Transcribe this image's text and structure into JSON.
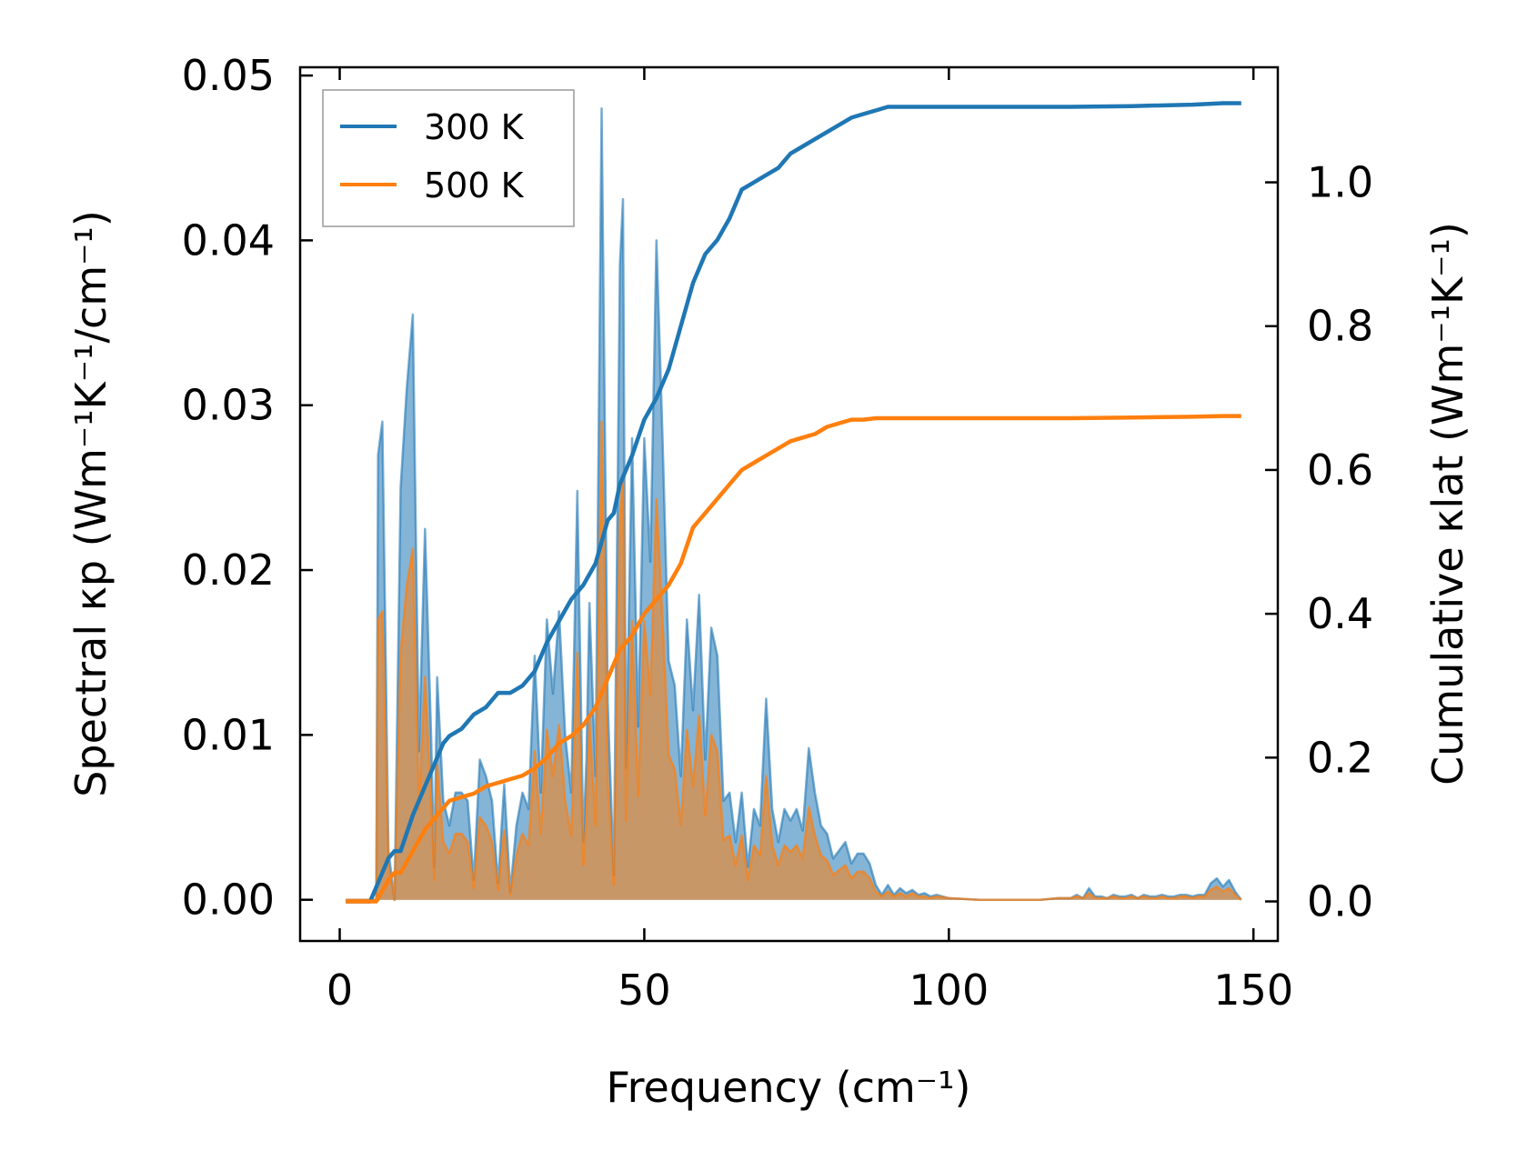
{
  "chart_data": {
    "type": "line",
    "xlabel": "Frequency (cm⁻¹)",
    "ylabel_left": "Spectral κp (Wm⁻¹K⁻¹/cm⁻¹)",
    "ylabel_right": "Cumulative κlat (Wm⁻¹K⁻¹)",
    "xlim": [
      -6.5,
      154
    ],
    "ylim_left": [
      -0.0025,
      0.0505
    ],
    "ylim_right": [
      -0.055,
      1.16
    ],
    "x_ticks": [
      0,
      50,
      100,
      150
    ],
    "x_tick_labels": [
      "0",
      "50",
      "100",
      "150"
    ],
    "y_left_ticks": [
      0,
      0.01,
      0.02,
      0.03,
      0.04,
      0.05
    ],
    "y_left_tick_labels": [
      "0.00",
      "0.01",
      "0.02",
      "0.03",
      "0.04",
      "0.05"
    ],
    "y_right_ticks": [
      0,
      0.2,
      0.4,
      0.6,
      0.8,
      1.0
    ],
    "y_right_tick_labels": [
      "0.0",
      "0.2",
      "0.4",
      "0.6",
      "0.8",
      "1.0"
    ],
    "legend": {
      "position": "top-left",
      "entries": [
        "300 K",
        "500 K"
      ]
    },
    "colors": {
      "300 K": "#1f77b4",
      "500 K": "#ff7f0e"
    },
    "spectral_x": [
      1,
      3,
      5,
      6,
      6.3,
      7,
      8,
      9,
      10,
      11,
      12,
      13,
      14,
      15,
      15.5,
      16,
      17,
      18,
      19,
      20,
      21,
      22,
      23,
      24,
      25,
      26,
      27,
      28,
      29,
      30,
      31,
      32,
      33,
      34,
      35,
      36,
      37,
      38,
      39,
      40,
      40.5,
      41,
      42,
      43,
      44,
      45,
      46,
      46.5,
      47,
      48,
      49,
      50,
      51,
      52,
      53,
      54,
      55,
      56,
      57,
      58,
      59,
      60,
      61,
      62,
      63,
      64,
      65,
      66,
      67,
      68,
      69,
      70,
      71,
      72,
      73,
      74,
      75,
      76,
      77,
      78,
      79,
      80,
      81,
      82,
      83,
      84,
      85,
      86,
      87,
      88,
      89,
      90,
      91,
      92,
      93,
      94,
      95,
      96,
      97,
      98,
      100,
      105,
      110,
      115,
      118,
      120,
      121,
      122,
      123,
      124,
      125,
      126,
      127,
      128,
      129,
      130,
      131,
      132,
      133,
      134,
      135,
      136,
      137,
      138,
      139,
      140,
      141,
      142,
      143,
      144,
      145,
      146,
      147,
      148
    ],
    "spectral_300K": [
      0,
      0,
      0,
      0,
      0.027,
      0.029,
      0.003,
      0,
      0.025,
      0.031,
      0.0355,
      0.009,
      0.0225,
      0.01,
      0.002,
      0.0135,
      0.006,
      0.0045,
      0.0065,
      0.0065,
      0.006,
      0.0012,
      0.0085,
      0.0075,
      0.006,
      0.001,
      0.007,
      0.0005,
      0.0045,
      0.0065,
      0.0055,
      0.0148,
      0.0065,
      0.017,
      0.0125,
      0.0175,
      0.01,
      0.0065,
      0.0248,
      0.0035,
      0.0085,
      0.018,
      0.0075,
      0.048,
      0.012,
      0.0015,
      0.0385,
      0.0425,
      0.008,
      0.028,
      0.0105,
      0.028,
      0.0205,
      0.04,
      0.028,
      0.0145,
      0.013,
      0.0075,
      0.017,
      0.0115,
      0.0185,
      0.0085,
      0.0165,
      0.0148,
      0.006,
      0.0065,
      0.0035,
      0.0065,
      0.002,
      0.0055,
      0.0045,
      0.0122,
      0.0055,
      0.0035,
      0.0055,
      0.0048,
      0.0055,
      0.0042,
      0.0092,
      0.0065,
      0.0045,
      0.004,
      0.0025,
      0.003,
      0.0035,
      0.0022,
      0.0028,
      0.0028,
      0.0022,
      0.0009,
      0.0003,
      0.0009,
      0.0003,
      0.0007,
      0.0004,
      0.0006,
      0.0003,
      0.0004,
      0.0002,
      0.0003,
      0.0001,
      0,
      0,
      0,
      0.0001,
      0.0001,
      0.0003,
      0.0001,
      0.0007,
      0.0002,
      0.0002,
      0.0001,
      0.0003,
      0.0002,
      0.0002,
      0.0003,
      0.0001,
      0.0003,
      0.0002,
      0.0002,
      0.0003,
      0.0002,
      0.0002,
      0.0003,
      0.0003,
      0.0002,
      0.0003,
      0.0003,
      0.001,
      0.0013,
      0.0008,
      0.0012,
      0.0005,
      0
    ],
    "spectral_500K": [
      0,
      0,
      0,
      0,
      0.017,
      0.0175,
      0.002,
      0,
      0.015,
      0.019,
      0.0213,
      0.0055,
      0.0135,
      0.006,
      0.0012,
      0.0082,
      0.0035,
      0.0028,
      0.004,
      0.004,
      0.0035,
      0.0007,
      0.005,
      0.0045,
      0.0035,
      0.0006,
      0.0042,
      0.0003,
      0.0027,
      0.004,
      0.0033,
      0.009,
      0.004,
      0.0103,
      0.0075,
      0.0106,
      0.006,
      0.0039,
      0.015,
      0.0021,
      0.0051,
      0.0109,
      0.0045,
      0.029,
      0.0072,
      0.0009,
      0.0232,
      0.0257,
      0.0048,
      0.0169,
      0.0063,
      0.0169,
      0.0124,
      0.0243,
      0.0169,
      0.0088,
      0.0079,
      0.0045,
      0.0103,
      0.0069,
      0.0112,
      0.0051,
      0.01,
      0.009,
      0.0036,
      0.0039,
      0.0021,
      0.0039,
      0.0012,
      0.0033,
      0.0027,
      0.0075,
      0.0033,
      0.0021,
      0.0033,
      0.0029,
      0.0033,
      0.0025,
      0.0056,
      0.0039,
      0.0027,
      0.0024,
      0.0015,
      0.0018,
      0.0021,
      0.0013,
      0.0017,
      0.0017,
      0.0013,
      0.0005,
      0.0002,
      0.0005,
      0.0002,
      0.0004,
      0.0002,
      0.0004,
      0.0002,
      0.0002,
      0.0001,
      0.0002,
      0.0001,
      0,
      0,
      0,
      0.0001,
      0.0001,
      0.0002,
      0.0001,
      0.0004,
      0.0001,
      0.0001,
      0.0001,
      0.0002,
      0.0001,
      0.0001,
      0.0002,
      0.0001,
      0.0002,
      0.0001,
      0.0001,
      0.0002,
      0.0001,
      0.0001,
      0.0002,
      0.0002,
      0.0001,
      0.0002,
      0.0002,
      0.0006,
      0.0008,
      0.0005,
      0.0007,
      0.0003,
      0
    ],
    "cumulative_x": [
      1,
      5,
      6,
      8,
      9,
      10,
      12,
      14,
      15,
      16,
      17,
      18,
      20,
      22,
      24,
      26,
      28,
      30,
      32,
      34,
      36,
      38,
      40,
      42,
      44,
      45,
      46,
      48,
      50,
      52,
      54,
      56,
      58,
      60,
      62,
      64,
      66,
      68,
      70,
      72,
      74,
      76,
      78,
      80,
      82,
      84,
      86,
      88,
      90,
      95,
      100,
      110,
      120,
      130,
      140,
      145,
      148
    ],
    "cumulative_300K": [
      0,
      0,
      0.02,
      0.06,
      0.07,
      0.07,
      0.12,
      0.16,
      0.18,
      0.2,
      0.22,
      0.23,
      0.24,
      0.26,
      0.27,
      0.29,
      0.29,
      0.3,
      0.32,
      0.36,
      0.39,
      0.42,
      0.44,
      0.47,
      0.53,
      0.54,
      0.58,
      0.62,
      0.67,
      0.7,
      0.74,
      0.8,
      0.86,
      0.9,
      0.92,
      0.95,
      0.99,
      1.0,
      1.01,
      1.02,
      1.04,
      1.05,
      1.06,
      1.07,
      1.08,
      1.09,
      1.095,
      1.1,
      1.105,
      1.105,
      1.105,
      1.105,
      1.105,
      1.106,
      1.108,
      1.11,
      1.11
    ],
    "cumulative_500K": [
      0,
      0,
      0,
      0.03,
      0.04,
      0.04,
      0.07,
      0.1,
      0.11,
      0.12,
      0.13,
      0.14,
      0.145,
      0.15,
      0.16,
      0.165,
      0.17,
      0.175,
      0.185,
      0.2,
      0.22,
      0.23,
      0.245,
      0.27,
      0.31,
      0.33,
      0.35,
      0.37,
      0.4,
      0.42,
      0.44,
      0.47,
      0.52,
      0.54,
      0.56,
      0.58,
      0.6,
      0.61,
      0.62,
      0.63,
      0.64,
      0.645,
      0.65,
      0.66,
      0.665,
      0.67,
      0.67,
      0.672,
      0.672,
      0.672,
      0.672,
      0.672,
      0.672,
      0.673,
      0.674,
      0.675,
      0.675
    ]
  }
}
